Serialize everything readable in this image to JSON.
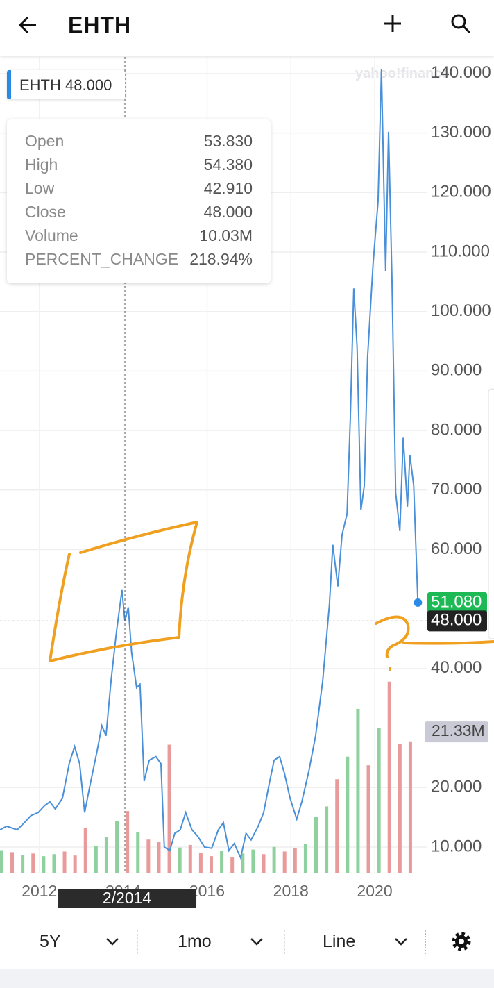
{
  "header": {
    "symbol": "EHTH"
  },
  "symbol_tag": {
    "symbol": "EHTH",
    "price": "48.000"
  },
  "tooltip": {
    "rows": [
      [
        "Open",
        "53.830"
      ],
      [
        "High",
        "54.380"
      ],
      [
        "Low",
        "42.910"
      ],
      [
        "Close",
        "48.000"
      ],
      [
        "Volume",
        "10.03M"
      ],
      [
        "PERCENT_CHANGE",
        "218.94%"
      ]
    ]
  },
  "watermark": "yahoo!finance",
  "toolbar": {
    "range": "5Y",
    "interval": "1mo",
    "chart_type": "Line"
  },
  "chart_data": {
    "type": "line",
    "xlim": [
      2011.06,
      2021.24
    ],
    "xticks": [
      2012,
      2014,
      2016,
      2018,
      2020
    ],
    "ylim": [
      4.95,
      143.85
    ],
    "yticks": [
      {
        "value": 10,
        "label": "10.000"
      },
      {
        "value": 20,
        "label": "20.000"
      },
      {
        "value": 40,
        "label": "40.000"
      },
      {
        "value": 60,
        "label": "60.000"
      },
      {
        "value": 70,
        "label": "70.000"
      },
      {
        "value": 80,
        "label": "80.000"
      },
      {
        "value": 90,
        "label": "90.000"
      },
      {
        "value": 100,
        "label": "100.000"
      },
      {
        "value": 110,
        "label": "110.000"
      },
      {
        "value": 120,
        "label": "120.000"
      },
      {
        "value": 130,
        "label": "130.000"
      },
      {
        "value": 140,
        "label": "140.000"
      }
    ],
    "grid": true,
    "series": [
      {
        "name": "EHTH",
        "color": "#4a90d9",
        "x": [
          2011.06,
          2011.22,
          2011.47,
          2011.64,
          2011.8,
          2011.97,
          2012.13,
          2012.25,
          2012.38,
          2012.55,
          2012.71,
          2012.84,
          2012.96,
          2013.08,
          2013.21,
          2013.38,
          2013.49,
          2013.59,
          2013.71,
          2013.84,
          2013.97,
          2014.04,
          2014.12,
          2014.2,
          2014.32,
          2014.4,
          2014.5,
          2014.62,
          2014.78,
          2014.9,
          2014.98,
          2015.11,
          2015.23,
          2015.36,
          2015.49,
          2015.64,
          2015.78,
          2015.94,
          2016.11,
          2016.27,
          2016.39,
          2016.52,
          2016.65,
          2016.8,
          2016.93,
          2017.05,
          2017.22,
          2017.35,
          2017.48,
          2017.6,
          2017.73,
          2017.85,
          2017.98,
          2018.14,
          2018.26,
          2018.43,
          2018.59,
          2018.76,
          2018.92,
          2019.0,
          2019.12,
          2019.22,
          2019.34,
          2019.42,
          2019.5,
          2019.58,
          2019.67,
          2019.75,
          2019.83,
          2019.96,
          2020.08,
          2020.16,
          2020.26,
          2020.33,
          2020.41,
          2020.5,
          2020.6,
          2020.68,
          2020.78,
          2020.84,
          2020.93,
          2021.03
        ],
        "values": [
          12.9,
          13.5,
          12.9,
          14.1,
          15.3,
          15.8,
          17,
          17.6,
          16.4,
          18.2,
          24,
          26.9,
          24,
          15.8,
          20.5,
          26.3,
          30.4,
          28.7,
          38,
          46.2,
          53.2,
          48,
          50.3,
          42.7,
          36.8,
          37.4,
          21.1,
          24.6,
          25.2,
          24,
          10,
          9.4,
          12.3,
          12.9,
          15.8,
          12.9,
          11.8,
          10,
          9.8,
          12.9,
          14.1,
          9.4,
          10.6,
          8.2,
          12.3,
          11.2,
          13.5,
          15.8,
          20.5,
          24.6,
          25.2,
          22.3,
          18.2,
          14.7,
          17.6,
          22.8,
          28.7,
          38,
          50.8,
          60.8,
          53.8,
          62.5,
          66,
          82.3,
          103.9,
          94,
          66.6,
          70.7,
          92.3,
          108,
          118.5,
          140.7,
          106.8,
          130.2,
          105.7,
          69.5,
          63.1,
          78.8,
          67.2,
          75.9,
          70.7,
          51.08
        ]
      }
    ],
    "last_price": {
      "value": 51.08,
      "label": "51.080",
      "color": "#1db954"
    },
    "crosshair": {
      "x": 2014.04,
      "x_label": "2/2014",
      "y": {
        "value": 48,
        "label": "48.000"
      }
    },
    "volume": {
      "ylim": [
        0,
        40
      ],
      "x": [
        2011.1,
        2011.35,
        2011.6,
        2011.85,
        2012.1,
        2012.35,
        2012.6,
        2012.85,
        2013.1,
        2013.35,
        2013.6,
        2013.85,
        2014.1,
        2014.35,
        2014.6,
        2014.85,
        2015.1,
        2015.35,
        2015.6,
        2015.85,
        2016.1,
        2016.35,
        2016.6,
        2016.85,
        2017.1,
        2017.35,
        2017.6,
        2017.85,
        2018.1,
        2018.35,
        2018.6,
        2018.85,
        2019.1,
        2019.35,
        2019.6,
        2019.85,
        2020.1,
        2020.35,
        2020.6,
        2020.85
      ],
      "values": [
        3.5,
        3.2,
        2.8,
        3.0,
        2.6,
        2.9,
        3.3,
        2.7,
        6.8,
        4.1,
        5.5,
        7.9,
        9.4,
        6.2,
        5.1,
        4.8,
        19.4,
        3.9,
        4.3,
        3.1,
        2.6,
        3.4,
        2.4,
        3.0,
        3.6,
        2.9,
        4.0,
        3.3,
        3.8,
        4.5,
        8.5,
        10.1,
        14.2,
        17.6,
        24.8,
        16.3,
        21.9,
        28.9,
        19.5,
        19.9
      ],
      "colors": [
        "#8fd19e",
        "#e99a9a",
        "#8fd19e",
        "#e99a9a",
        "#8fd19e",
        "#8fd19e",
        "#e99a9a",
        "#e99a9a",
        "#e99a9a",
        "#8fd19e",
        "#8fd19e",
        "#8fd19e",
        "#e99a9a",
        "#8fd19e",
        "#e99a9a",
        "#e99a9a",
        "#e99a9a",
        "#8fd19e",
        "#e99a9a",
        "#e99a9a",
        "#e99a9a",
        "#8fd19e",
        "#e99a9a",
        "#8fd19e",
        "#8fd19e",
        "#e99a9a",
        "#8fd19e",
        "#e99a9a",
        "#e99a9a",
        "#8fd19e",
        "#8fd19e",
        "#8fd19e",
        "#e99a9a",
        "#8fd19e",
        "#8fd19e",
        "#e99a9a",
        "#8fd19e",
        "#e99a9a",
        "#e99a9a",
        "#e99a9a"
      ],
      "marker": {
        "value": 21.33,
        "label": "21.33M"
      }
    }
  }
}
